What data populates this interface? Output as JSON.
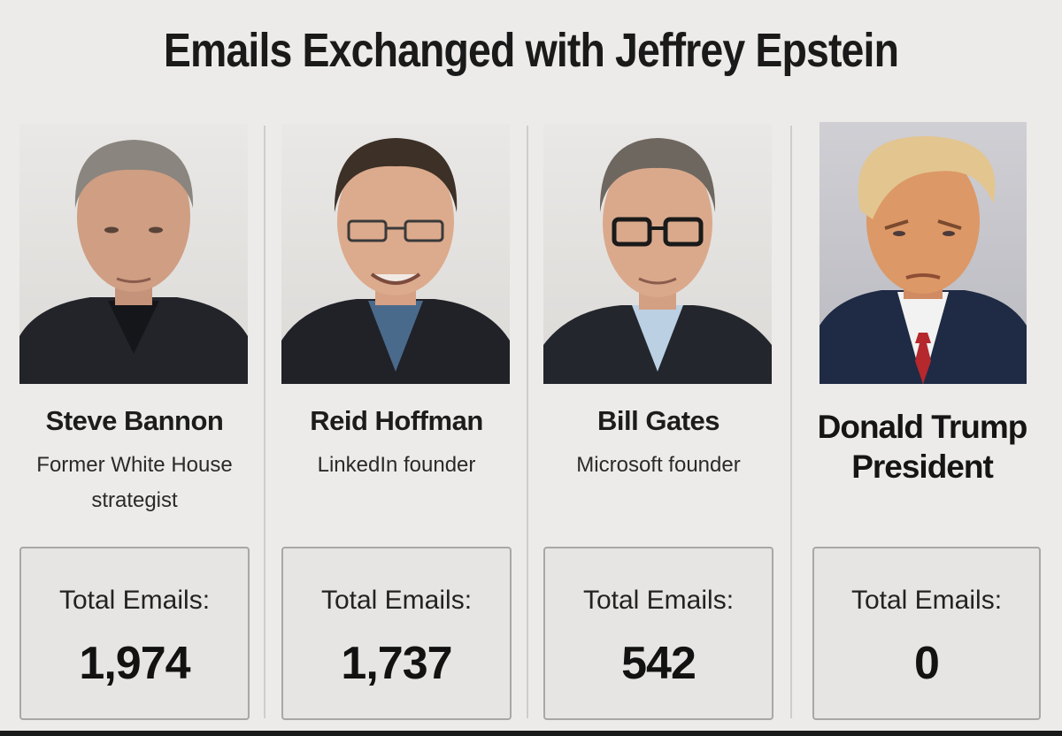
{
  "header": {
    "title": "Emails Exchanged with Jeffrey Epstein"
  },
  "people": [
    {
      "name": "Steve Bannon",
      "role_line1": "Former White House",
      "role_line2": "strategist",
      "total_label": "Total Emails:",
      "total_value": "1,974"
    },
    {
      "name": "Reid Hoffman",
      "role_line1": "LinkedIn founder",
      "total_label": "Total Emails:",
      "total_value": "1,737"
    },
    {
      "name": "Bill Gates",
      "role_line1": "Microsoft founder",
      "total_label": "Total Emails:",
      "total_value": "542"
    },
    {
      "name_line1": "Donald Trump",
      "name_line2": "President",
      "total_label": "Total Emails:",
      "total_value": "0"
    }
  ],
  "colors": {
    "background": "#ecebe9",
    "box_border": "#a9a7a4",
    "text": "#1b1b1b",
    "suit": "#1f2126",
    "tie": "#b5282e"
  }
}
